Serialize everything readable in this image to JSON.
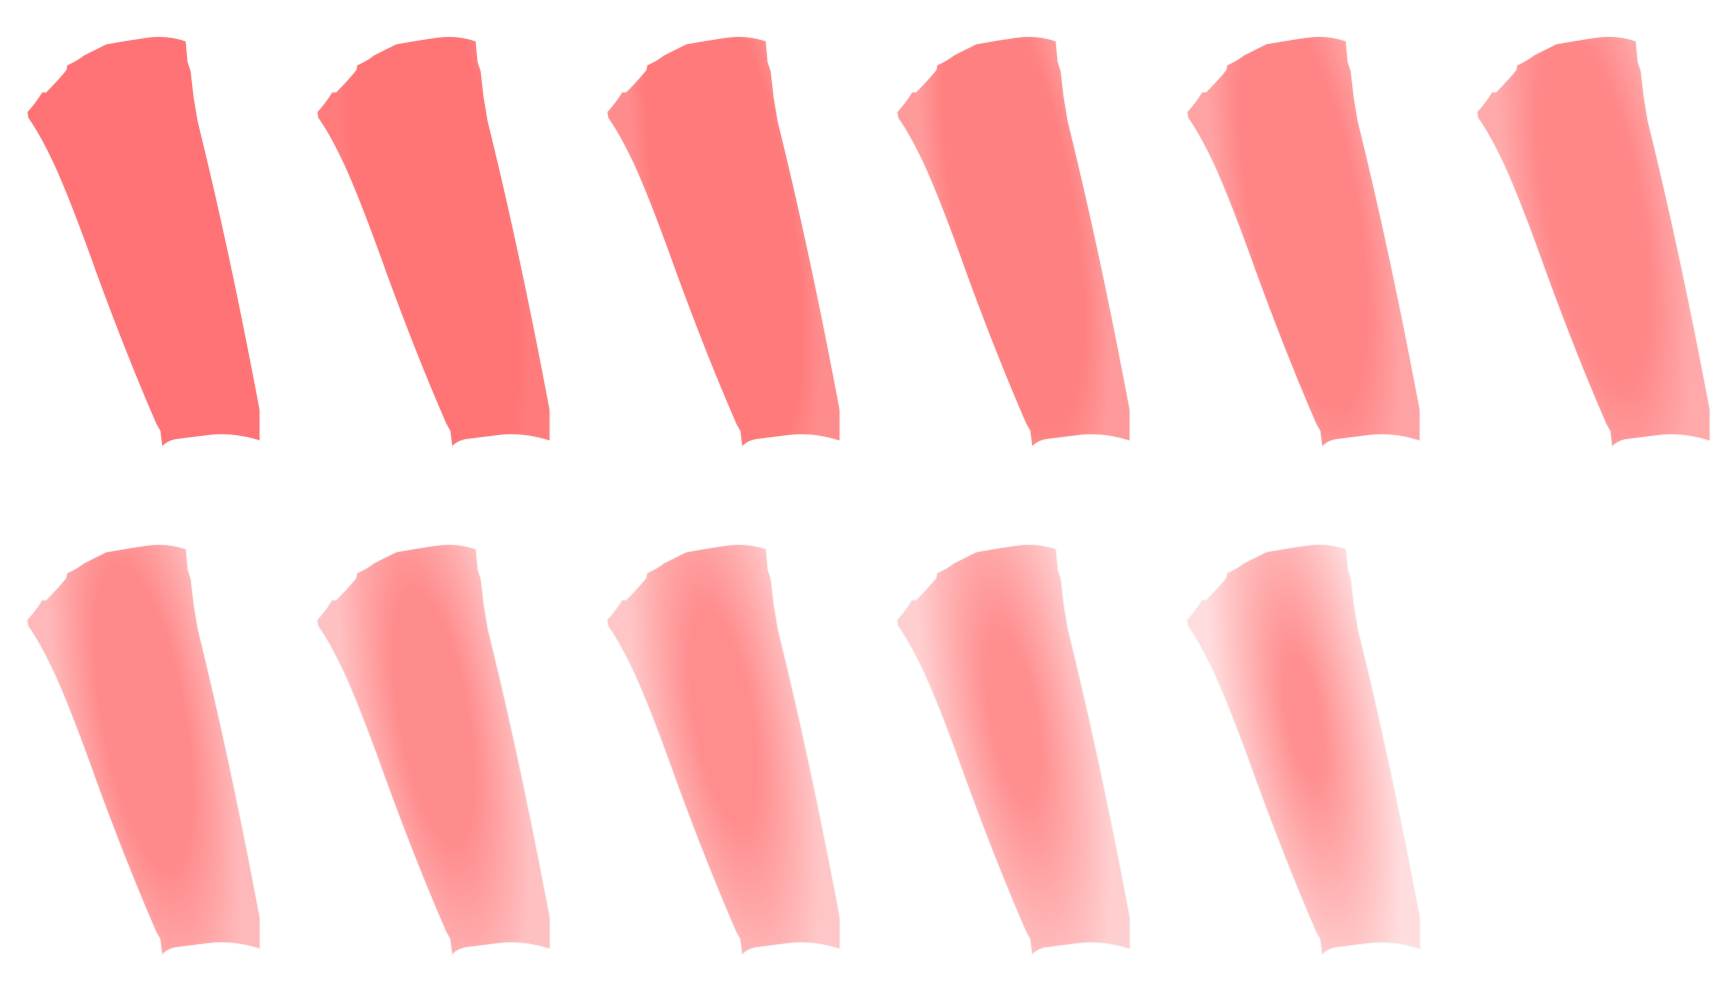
{
  "swatches": [
    {
      "id": "swatch-1",
      "edge_color": "#ff7275",
      "center_color": "#ff7275",
      "feather": 0.0
    },
    {
      "id": "swatch-2",
      "edge_color": "#ff7b7c",
      "center_color": "#ff7575",
      "feather": 0.1
    },
    {
      "id": "swatch-3",
      "edge_color": "#ff8c8d",
      "center_color": "#ff7a7a",
      "feather": 0.2
    },
    {
      "id": "swatch-4",
      "edge_color": "#ff9a9b",
      "center_color": "#ff8080",
      "feather": 0.3
    },
    {
      "id": "swatch-5",
      "edge_color": "#ffa2a3",
      "center_color": "#ff8485",
      "feather": 0.4
    },
    {
      "id": "swatch-6",
      "edge_color": "#ffa9aa",
      "center_color": "#ff8788",
      "feather": 0.5
    },
    {
      "id": "swatch-7",
      "edge_color": "#ffb8b9",
      "center_color": "#ff8a8b",
      "feather": 0.6
    },
    {
      "id": "swatch-8",
      "edge_color": "#ffc0c1",
      "center_color": "#ff8c8d",
      "feather": 0.7
    },
    {
      "id": "swatch-9",
      "edge_color": "#ffc6c7",
      "center_color": "#ff8d8e",
      "feather": 0.8
    },
    {
      "id": "swatch-10",
      "edge_color": "#ffcecf",
      "center_color": "#ff8e8f",
      "feather": 0.9
    },
    {
      "id": "swatch-11",
      "edge_color": "#ffdcdd",
      "center_color": "#ff8f90",
      "feather": 1.0
    }
  ]
}
